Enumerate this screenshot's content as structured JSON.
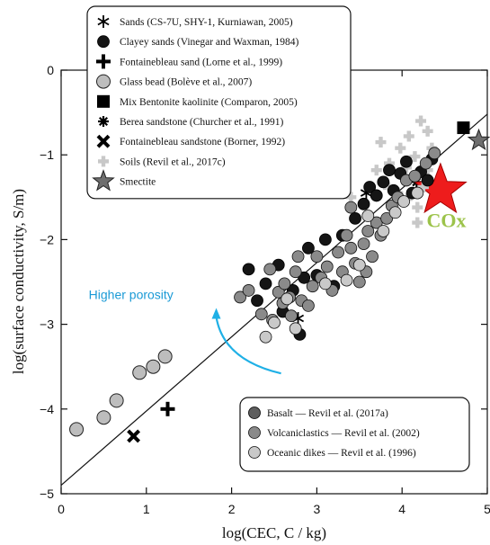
{
  "chart_data": {
    "type": "scatter",
    "xlabel": "log(CEC, C / kg)",
    "ylabel": "log(surface conductivity, S/m)",
    "xlim": [
      0,
      5
    ],
    "ylim": [
      -5,
      0
    ],
    "xticks": [
      0,
      1,
      2,
      3,
      4,
      5
    ],
    "yticks": [
      0,
      -1,
      -2,
      -3,
      -4,
      -5
    ],
    "grid": false,
    "fit_line": {
      "x": [
        0,
        5
      ],
      "y": [
        -4.9,
        -0.52
      ]
    },
    "annotations": [
      {
        "text": "COx",
        "x": 4.52,
        "y": -1.85,
        "color": "#9cc34a"
      },
      {
        "text": "Higher porosity",
        "x": 0.82,
        "y": -2.7,
        "color": "#1a9ad6"
      }
    ],
    "arrow": {
      "color": "#1fb0e6",
      "from": [
        2.58,
        -3.58
      ],
      "to": [
        1.82,
        -2.85
      ]
    },
    "legend_top": {
      "position": "top-left",
      "entries": [
        {
          "marker": "asterisk",
          "label": "Sands (CS-7U, SHY-1, Kurniawan, 2005)"
        },
        {
          "marker": "circle-black",
          "label": "Clayey sands (Vinegar and Waxman, 1984)"
        },
        {
          "marker": "plus",
          "label": "Fontainebleau sand (Lorne et al., 1999)"
        },
        {
          "marker": "circle-gray",
          "label": "Glass bead (Bolève et al., 2007)"
        },
        {
          "marker": "square",
          "label": "Mix Bentonite kaolinite (Comparon, 2005)"
        },
        {
          "marker": "asterisk8",
          "label": "Berea sandstone (Churcher et al., 1991)"
        },
        {
          "marker": "cross",
          "label": "Fontainebleau sandstone (Borner, 1992)"
        },
        {
          "marker": "plus-light",
          "label": "Soils (Revil et al., 2017c)"
        },
        {
          "marker": "star",
          "label": "Smectite"
        }
      ]
    },
    "legend_bottom": {
      "position": "bottom-right",
      "entries": [
        {
          "marker": "circle-dark",
          "label": "Basalt — Revil et al. (2017a)"
        },
        {
          "marker": "circle-mid",
          "label": "Volcaniclastics — Revil et al. (2002)"
        },
        {
          "marker": "circle-light",
          "label": "Oceanic dikes — Revil et al. (1996)"
        }
      ]
    },
    "series": [
      {
        "marker": "circle-gray",
        "color": "#bdbdbd",
        "points": [
          [
            0.18,
            -4.24
          ],
          [
            0.5,
            -4.1
          ],
          [
            0.65,
            -3.9
          ],
          [
            0.92,
            -3.57
          ],
          [
            1.08,
            -3.5
          ],
          [
            1.22,
            -3.38
          ]
        ]
      },
      {
        "marker": "plus",
        "color": "#000000",
        "points": [
          [
            1.25,
            -4.0
          ]
        ]
      },
      {
        "marker": "cross",
        "color": "#000000",
        "points": [
          [
            0.85,
            -4.32
          ]
        ]
      },
      {
        "marker": "asterisk",
        "color": "#000000",
        "points": [
          [
            2.78,
            -2.93
          ],
          [
            3.58,
            -1.45
          ]
        ]
      },
      {
        "marker": "asterisk8",
        "color": "#000000",
        "points": [
          [
            4.17,
            -1.32
          ]
        ]
      },
      {
        "marker": "square",
        "color": "#000000",
        "points": [
          [
            4.72,
            -0.68
          ]
        ]
      },
      {
        "marker": "star",
        "color": "#6e6e6e",
        "points": [
          [
            4.9,
            -0.83
          ]
        ]
      },
      {
        "marker": "star-big",
        "color": "#ee1c1c",
        "points": [
          [
            4.45,
            -1.42
          ]
        ]
      },
      {
        "marker": "plus-light",
        "color": "#c8c8c8",
        "points": [
          [
            3.4,
            -1.5
          ],
          [
            3.7,
            -1.18
          ],
          [
            3.8,
            -1.35
          ],
          [
            3.85,
            -1.1
          ],
          [
            3.9,
            -1.6
          ],
          [
            3.95,
            -1.45
          ],
          [
            4.0,
            -1.25
          ],
          [
            4.05,
            -1.15
          ],
          [
            4.1,
            -1.48
          ],
          [
            4.15,
            -1.02
          ],
          [
            4.18,
            -1.62
          ],
          [
            4.25,
            -1.38
          ],
          [
            4.3,
            -1.18
          ],
          [
            4.35,
            -0.92
          ],
          [
            4.08,
            -0.78
          ],
          [
            4.22,
            -0.6
          ],
          [
            4.3,
            -0.72
          ],
          [
            3.98,
            -0.92
          ],
          [
            3.75,
            -0.85
          ],
          [
            4.18,
            -1.8
          ]
        ]
      },
      {
        "marker": "circle-black",
        "color": "#151515",
        "points": [
          [
            2.2,
            -2.35
          ],
          [
            2.3,
            -2.72
          ],
          [
            2.4,
            -2.52
          ],
          [
            2.55,
            -2.3
          ],
          [
            2.6,
            -2.85
          ],
          [
            2.72,
            -2.6
          ],
          [
            2.8,
            -3.12
          ],
          [
            2.85,
            -2.45
          ],
          [
            2.9,
            -2.1
          ],
          [
            3.0,
            -2.42
          ],
          [
            3.1,
            -2.0
          ],
          [
            3.2,
            -2.55
          ],
          [
            3.3,
            -1.95
          ],
          [
            3.45,
            -1.75
          ],
          [
            3.55,
            -1.58
          ],
          [
            3.62,
            -1.38
          ],
          [
            3.7,
            -1.48
          ],
          [
            3.78,
            -1.32
          ],
          [
            3.85,
            -1.18
          ],
          [
            3.9,
            -1.42
          ],
          [
            3.98,
            -1.22
          ],
          [
            4.05,
            -1.08
          ],
          [
            4.12,
            -1.45
          ],
          [
            4.22,
            -1.2
          ],
          [
            4.3,
            -1.3
          ],
          [
            4.35,
            -1.05
          ]
        ]
      },
      {
        "marker": "circle-mid",
        "color": "#8a8a8a",
        "points": [
          [
            2.1,
            -2.68
          ],
          [
            2.2,
            -2.6
          ],
          [
            2.35,
            -2.88
          ],
          [
            2.45,
            -2.35
          ],
          [
            2.55,
            -2.62
          ],
          [
            2.62,
            -2.52
          ],
          [
            2.68,
            -2.68
          ],
          [
            2.75,
            -2.38
          ],
          [
            2.82,
            -2.72
          ],
          [
            2.9,
            -2.78
          ],
          [
            2.95,
            -2.55
          ],
          [
            3.0,
            -2.2
          ],
          [
            3.05,
            -2.45
          ],
          [
            3.12,
            -2.32
          ],
          [
            3.18,
            -2.6
          ],
          [
            3.25,
            -2.15
          ],
          [
            3.3,
            -2.38
          ],
          [
            3.35,
            -1.95
          ],
          [
            3.4,
            -2.1
          ],
          [
            3.45,
            -2.28
          ],
          [
            3.5,
            -2.5
          ],
          [
            3.55,
            -2.05
          ],
          [
            3.6,
            -1.9
          ],
          [
            3.65,
            -2.2
          ],
          [
            3.7,
            -1.8
          ],
          [
            3.75,
            -1.95
          ],
          [
            3.82,
            -1.75
          ],
          [
            3.88,
            -1.6
          ],
          [
            3.95,
            -1.5
          ],
          [
            4.05,
            -1.3
          ],
          [
            4.15,
            -1.25
          ],
          [
            4.28,
            -1.1
          ],
          [
            4.38,
            -0.98
          ],
          [
            2.7,
            -2.9
          ],
          [
            2.6,
            -2.75
          ],
          [
            2.48,
            -2.95
          ],
          [
            2.78,
            -2.2
          ],
          [
            3.4,
            -1.62
          ],
          [
            3.58,
            -2.38
          ]
        ]
      },
      {
        "marker": "circle-light",
        "color": "#c9c9c9",
        "points": [
          [
            2.5,
            -2.98
          ],
          [
            2.65,
            -2.7
          ],
          [
            2.75,
            -3.05
          ],
          [
            2.4,
            -3.15
          ],
          [
            3.1,
            -2.52
          ],
          [
            3.35,
            -2.48
          ],
          [
            3.5,
            -2.3
          ],
          [
            3.6,
            -1.72
          ],
          [
            3.78,
            -1.9
          ],
          [
            4.18,
            -1.45
          ],
          [
            3.92,
            -1.68
          ],
          [
            4.02,
            -1.55
          ]
        ]
      }
    ]
  }
}
